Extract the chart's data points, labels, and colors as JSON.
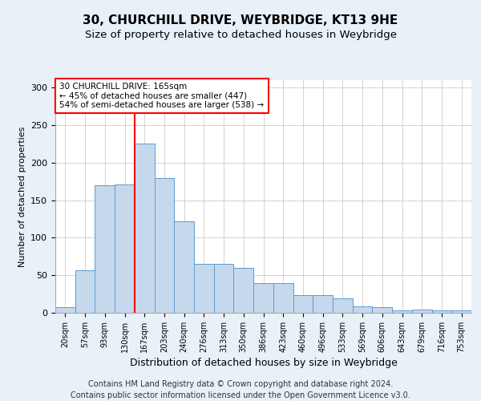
{
  "title1": "30, CHURCHILL DRIVE, WEYBRIDGE, KT13 9HE",
  "title2": "Size of property relative to detached houses in Weybridge",
  "xlabel": "Distribution of detached houses by size in Weybridge",
  "ylabel": "Number of detached properties",
  "categories": [
    "20sqm",
    "57sqm",
    "93sqm",
    "130sqm",
    "167sqm",
    "203sqm",
    "240sqm",
    "276sqm",
    "313sqm",
    "350sqm",
    "386sqm",
    "423sqm",
    "460sqm",
    "496sqm",
    "533sqm",
    "569sqm",
    "606sqm",
    "643sqm",
    "679sqm",
    "716sqm",
    "753sqm"
  ],
  "values": [
    7,
    57,
    170,
    171,
    226,
    180,
    122,
    65,
    65,
    60,
    40,
    40,
    24,
    24,
    19,
    9,
    8,
    3,
    4,
    3,
    3
  ],
  "bar_color": "#c5d8ec",
  "bar_edge_color": "#5b9bd5",
  "vline_x_index": 4,
  "vline_color": "red",
  "annotation_text": "30 CHURCHILL DRIVE: 165sqm\n← 45% of detached houses are smaller (447)\n54% of semi-detached houses are larger (538) →",
  "annotation_box_color": "white",
  "annotation_box_edge_color": "red",
  "ylim": [
    0,
    310
  ],
  "yticks": [
    0,
    50,
    100,
    150,
    200,
    250,
    300
  ],
  "footer_text": "Contains HM Land Registry data © Crown copyright and database right 2024.\nContains public sector information licensed under the Open Government Licence v3.0.",
  "background_color": "#e8f0f8",
  "plot_background_color": "white",
  "title1_fontsize": 11,
  "title2_fontsize": 9.5,
  "footer_fontsize": 7,
  "ylabel_fontsize": 8,
  "xlabel_fontsize": 9,
  "tick_fontsize": 7,
  "ann_fontsize": 7.5
}
